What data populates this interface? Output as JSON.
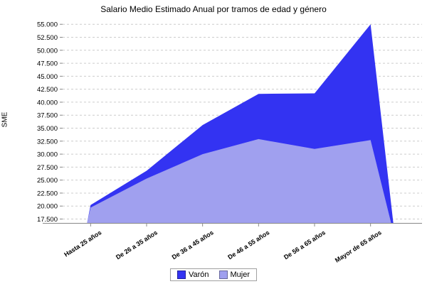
{
  "title": "Salario Medio Estimado Anual por tramos de edad y género",
  "y_axis_label": "SME",
  "colors": {
    "varon": "#3333f2",
    "mujer": "#a0a0ef",
    "grid": "#cccccc",
    "axis": "#888888",
    "text": "#000000",
    "legend_border": "#a0a0a0"
  },
  "chart_data": {
    "type": "area",
    "title": "Salario Medio Estimado Anual por tramos de edad y género",
    "xlabel": "",
    "ylabel": "SME",
    "categories": [
      "Hasta 25 años",
      "De 26 a 35 años",
      "De 36 a 45 años",
      "De 46 a 55 años",
      "De 56 a 65 años",
      "Mayor de 65 años"
    ],
    "series": [
      {
        "name": "Varón",
        "color": "#3333f2",
        "values": [
          20200,
          26800,
          35600,
          41600,
          41700,
          55000
        ]
      },
      {
        "name": "Mujer",
        "color": "#a0a0ef",
        "values": [
          19700,
          25300,
          30000,
          32900,
          31000,
          32700
        ]
      }
    ],
    "ylim": [
      16750,
      55850
    ],
    "ytick_min": 17500,
    "ytick_max": 55000,
    "ytick_step": 2500,
    "ytick_labels": [
      "17.500",
      "20.000",
      "22.500",
      "25.000",
      "27.500",
      "30.000",
      "32.500",
      "35.000",
      "37.500",
      "40.000",
      "42.500",
      "45.000",
      "47.500",
      "50.000",
      "52.500",
      "55.000"
    ],
    "grid": true,
    "grid_style": "dashed",
    "legend_position": "bottom",
    "x_label_rotation_deg": -33
  }
}
